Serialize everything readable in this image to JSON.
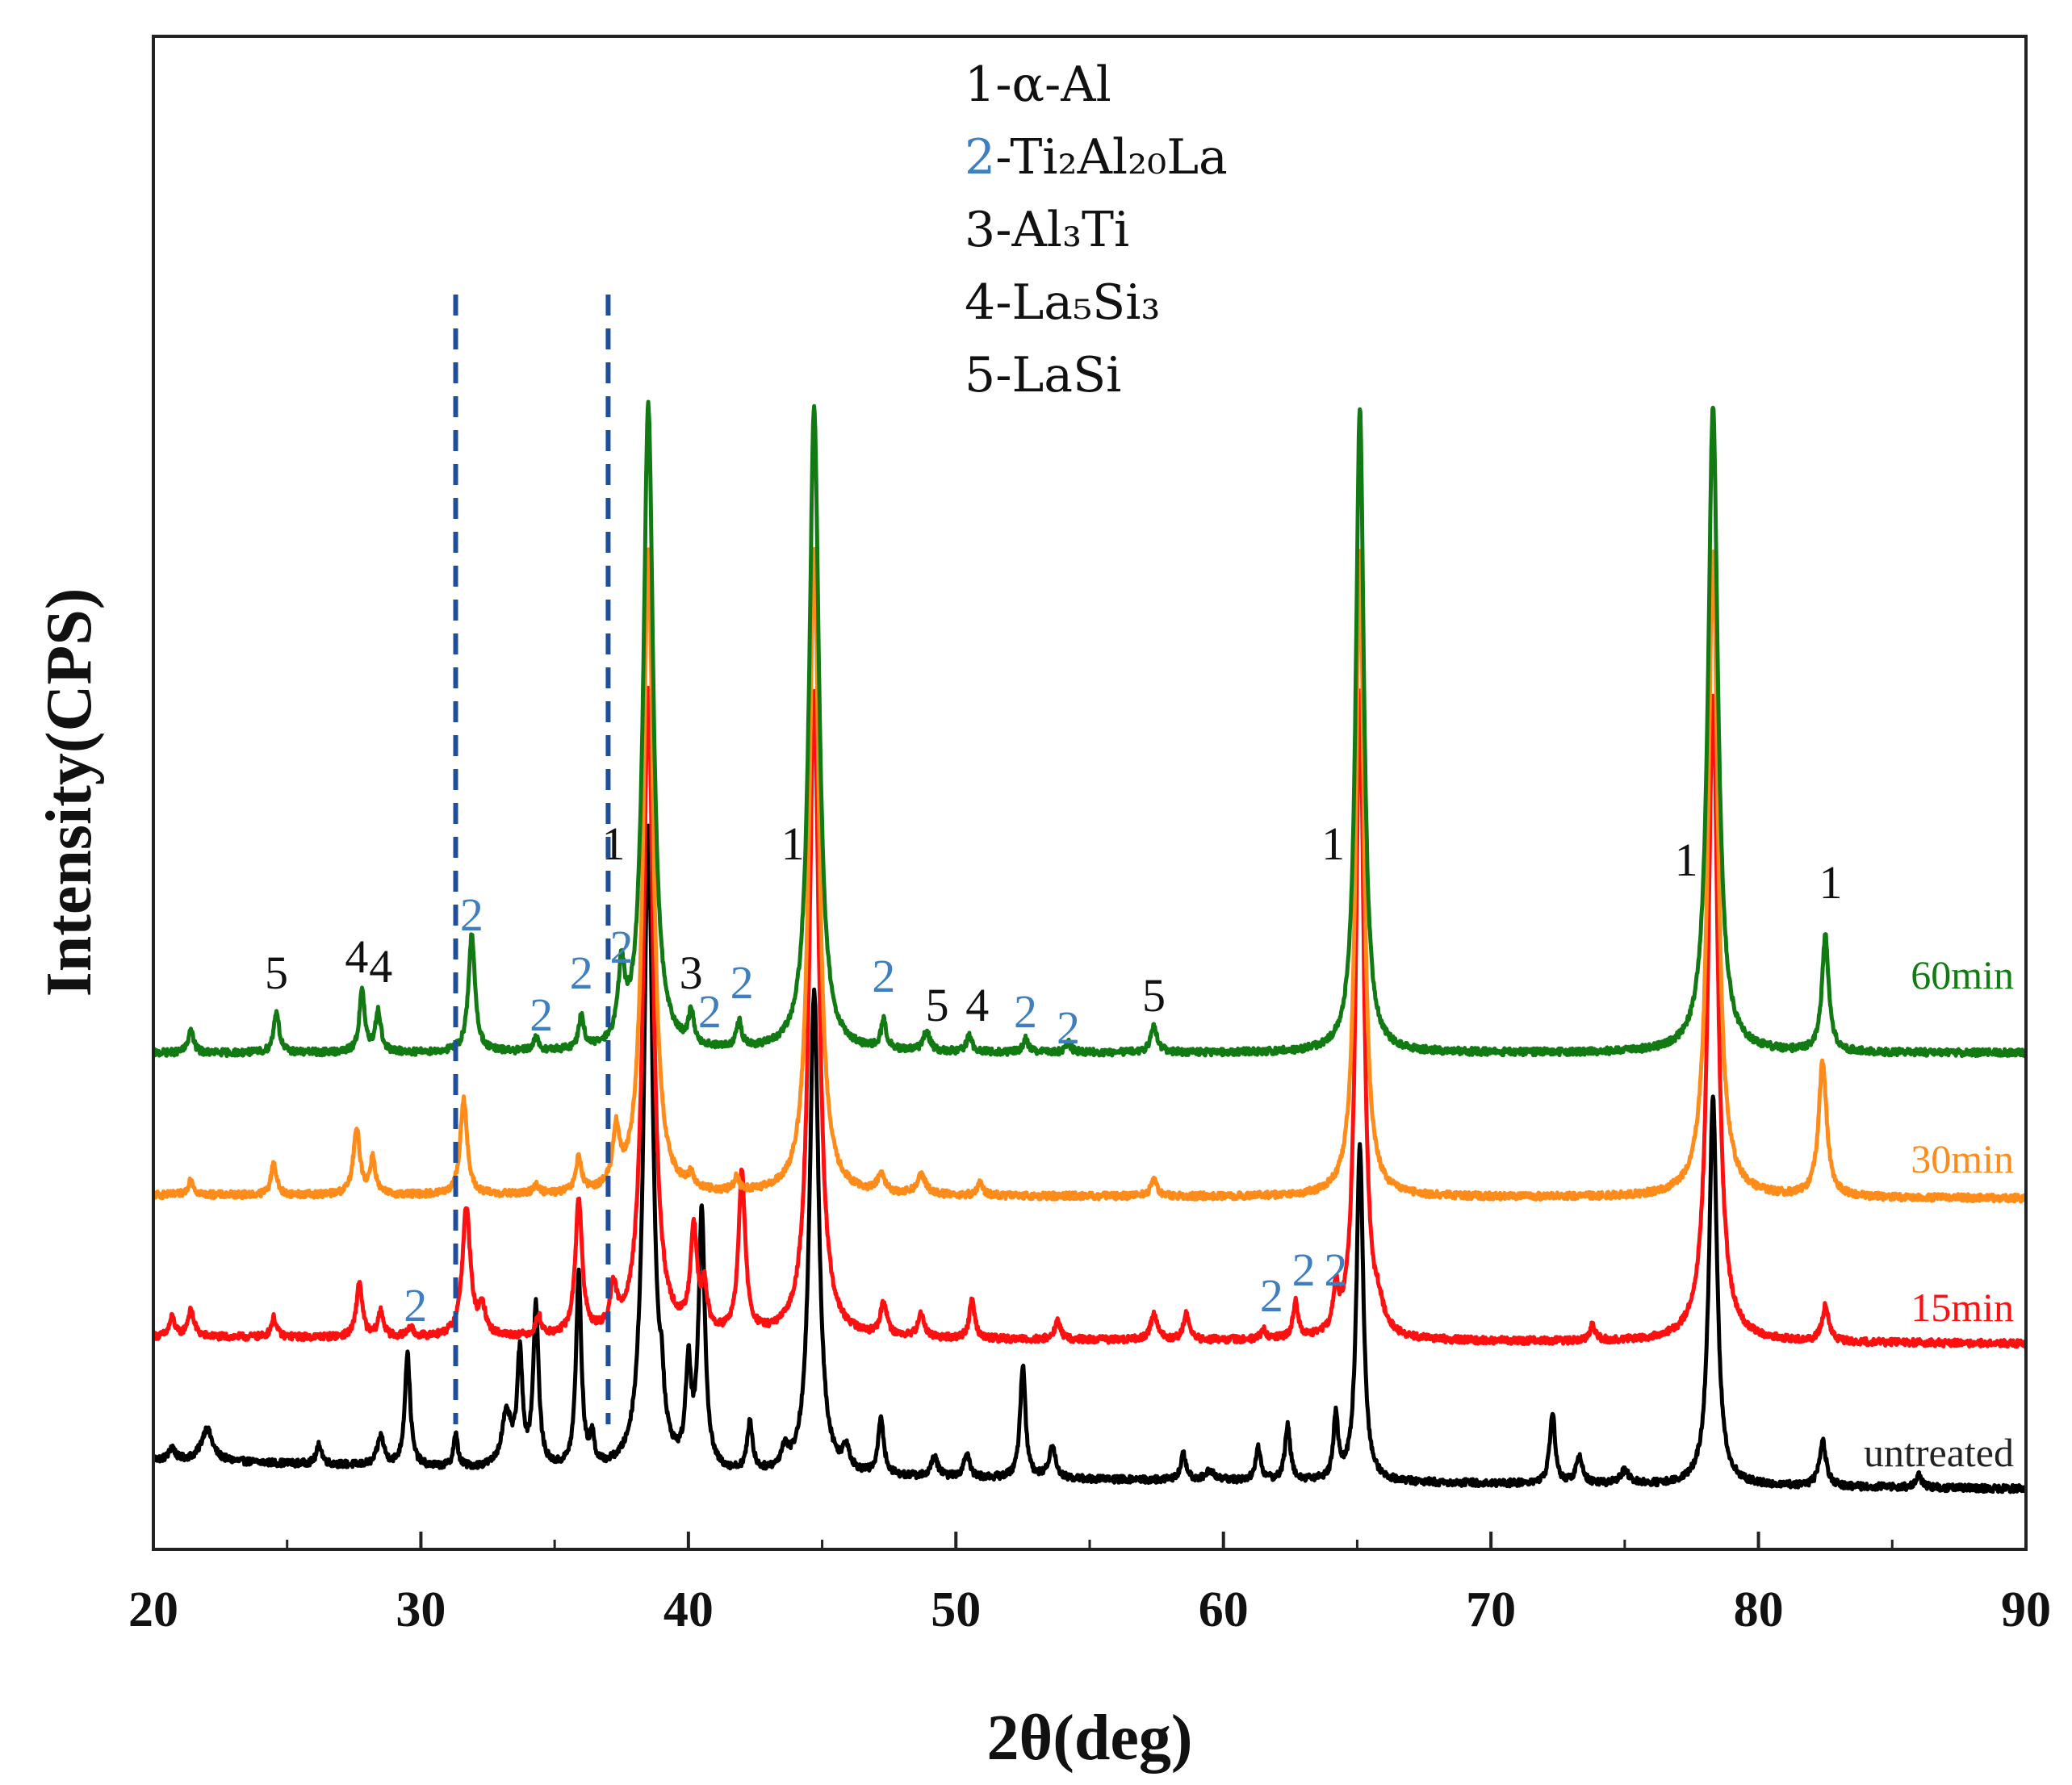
{
  "chart_data": {
    "type": "line",
    "title": "",
    "xlabel": "2θ(deg)",
    "ylabel": "Intensity(CPS)",
    "xlim": [
      20,
      90
    ],
    "x_ticks": [
      20,
      30,
      40,
      50,
      60,
      70,
      80,
      90
    ],
    "grid": false,
    "legend": {
      "position": "top-center",
      "entries": [
        {
          "number": "1",
          "name": "-α-Al",
          "color": "#111111"
        },
        {
          "number": "2",
          "name": "-Ti₂Al₂₀La",
          "color": "#3f7fbf"
        },
        {
          "number": "3",
          "name": "-Al₃Ti",
          "color": "#111111"
        },
        {
          "number": "4",
          "name": "-La₅Si₃",
          "color": "#111111"
        },
        {
          "number": "5",
          "name": "-LaSi",
          "color": "#111111"
        }
      ]
    },
    "series": [
      {
        "name": "untreated",
        "color": "#000000",
        "offset": 0,
        "baseline": [
          [
            20,
            9
          ],
          [
            40,
            4
          ],
          [
            90,
            0
          ]
        ],
        "peaks": [
          [
            20.7,
            4,
            0.12
          ],
          [
            22.0,
            10,
            0.25
          ],
          [
            26.2,
            6,
            0.12
          ],
          [
            28.5,
            9,
            0.15
          ],
          [
            29.5,
            35,
            0.12
          ],
          [
            31.3,
            10,
            0.1
          ],
          [
            33.2,
            16,
            0.22
          ],
          [
            33.7,
            34,
            0.12
          ],
          [
            34.3,
            50,
            0.12
          ],
          [
            35.9,
            60,
            0.12
          ],
          [
            36.4,
            9,
            0.1
          ],
          [
            38.5,
            200,
            0.2
          ],
          [
            39.0,
            14,
            0.1
          ],
          [
            40.0,
            30,
            0.12
          ],
          [
            40.5,
            80,
            0.14
          ],
          [
            42.3,
            15,
            0.12
          ],
          [
            43.6,
            6,
            0.15
          ],
          [
            44.7,
            150,
            0.2
          ],
          [
            45.9,
            7,
            0.15
          ],
          [
            47.2,
            18,
            0.12
          ],
          [
            49.2,
            6,
            0.15
          ],
          [
            50.4,
            8,
            0.12
          ],
          [
            52.5,
            35,
            0.12
          ],
          [
            53.6,
            10,
            0.15
          ],
          [
            58.5,
            8,
            0.12
          ],
          [
            59.5,
            3,
            0.2
          ],
          [
            61.3,
            10,
            0.12
          ],
          [
            62.4,
            17,
            0.12
          ],
          [
            64.2,
            20,
            0.1
          ],
          [
            65.1,
            105,
            0.15
          ],
          [
            72.3,
            22,
            0.12
          ],
          [
            73.3,
            8,
            0.15
          ],
          [
            75.0,
            4,
            0.2
          ],
          [
            78.3,
            120,
            0.18
          ],
          [
            82.4,
            14,
            0.15
          ],
          [
            86.0,
            4,
            0.12
          ]
        ]
      },
      {
        "name": "15min",
        "color": "#ff1010",
        "offset": 45,
        "baseline": [
          [
            20,
            2
          ],
          [
            90,
            0
          ]
        ],
        "peaks": [
          [
            20.7,
            6,
            0.12
          ],
          [
            21.4,
            8,
            0.15
          ],
          [
            24.5,
            6,
            0.12
          ],
          [
            27.7,
            17,
            0.13
          ],
          [
            28.5,
            8,
            0.12
          ],
          [
            29.6,
            3,
            0.12
          ],
          [
            31.7,
            40,
            0.18
          ],
          [
            32.3,
            8,
            0.15
          ],
          [
            34.4,
            6,
            0.12
          ],
          [
            35.9,
            42,
            0.15
          ],
          [
            37.2,
            12,
            0.15
          ],
          [
            38.5,
            200,
            0.22
          ],
          [
            40.2,
            32,
            0.15
          ],
          [
            40.6,
            13,
            0.12
          ],
          [
            42.0,
            50,
            0.15
          ],
          [
            44.7,
            200,
            0.22
          ],
          [
            47.3,
            10,
            0.15
          ],
          [
            48.7,
            7,
            0.15
          ],
          [
            50.6,
            12,
            0.12
          ],
          [
            53.8,
            6,
            0.12
          ],
          [
            57.4,
            8,
            0.15
          ],
          [
            58.6,
            8,
            0.12
          ],
          [
            61.5,
            3,
            0.12
          ],
          [
            62.7,
            11,
            0.12
          ],
          [
            64.2,
            13,
            0.1
          ],
          [
            65.1,
            200,
            0.18
          ],
          [
            65.8,
            6,
            0.2
          ],
          [
            73.8,
            5,
            0.12
          ],
          [
            78.3,
            200,
            0.22
          ],
          [
            82.5,
            11,
            0.15
          ]
        ]
      },
      {
        "name": "30min",
        "color": "#ff8c1a",
        "offset": 90,
        "baseline": [
          [
            20,
            1
          ],
          [
            90,
            0
          ]
        ],
        "peaks": [
          [
            21.4,
            5,
            0.12
          ],
          [
            24.5,
            10,
            0.12
          ],
          [
            27.6,
            20,
            0.15
          ],
          [
            28.2,
            11,
            0.12
          ],
          [
            31.6,
            30,
            0.15
          ],
          [
            34.3,
            3,
            0.12
          ],
          [
            35.9,
            11,
            0.12
          ],
          [
            37.3,
            17,
            0.15
          ],
          [
            38.5,
            200,
            0.22
          ],
          [
            40.1,
            4,
            0.12
          ],
          [
            41.8,
            4,
            0.12
          ],
          [
            44.7,
            200,
            0.22
          ],
          [
            47.2,
            6,
            0.15
          ],
          [
            48.7,
            6,
            0.2
          ],
          [
            50.9,
            4,
            0.12
          ],
          [
            57.4,
            5,
            0.15
          ],
          [
            65.1,
            200,
            0.18
          ],
          [
            78.3,
            200,
            0.22
          ],
          [
            82.4,
            42,
            0.18
          ]
        ]
      },
      {
        "name": "60min",
        "color": "#127a12",
        "offset": 135,
        "baseline": [
          [
            20,
            0
          ],
          [
            90,
            0
          ]
        ],
        "peaks": [
          [
            21.4,
            7,
            0.12
          ],
          [
            24.6,
            13,
            0.12
          ],
          [
            27.8,
            19,
            0.12
          ],
          [
            28.4,
            13,
            0.12
          ],
          [
            31.9,
            36,
            0.15
          ],
          [
            34.3,
            4,
            0.12
          ],
          [
            36.0,
            10,
            0.12
          ],
          [
            37.5,
            22,
            0.15
          ],
          [
            38.5,
            200,
            0.22
          ],
          [
            40.1,
            10,
            0.12
          ],
          [
            41.9,
            8,
            0.12
          ],
          [
            44.7,
            200,
            0.22
          ],
          [
            47.3,
            9,
            0.12
          ],
          [
            48.9,
            6,
            0.15
          ],
          [
            50.5,
            5,
            0.12
          ],
          [
            52.6,
            4,
            0.12
          ],
          [
            54.2,
            3,
            0.12
          ],
          [
            57.4,
            8,
            0.15
          ],
          [
            65.1,
            200,
            0.18
          ],
          [
            78.3,
            200,
            0.22
          ],
          [
            82.5,
            36,
            0.15
          ]
        ]
      }
    ],
    "series_labels": [
      "60min",
      "30min",
      "15min",
      "untreated"
    ],
    "reference_lines": [
      31.3,
      37.0
    ],
    "peak_labels": [
      {
        "text": "1",
        "x": 37.2,
        "y": 195,
        "color": "#111111"
      },
      {
        "text": "1",
        "x": 43.9,
        "y": 195,
        "color": "#111111"
      },
      {
        "text": "1",
        "x": 64.1,
        "y": 195,
        "color": "#111111"
      },
      {
        "text": "1",
        "x": 77.3,
        "y": 190,
        "color": "#111111"
      },
      {
        "text": "1",
        "x": 82.7,
        "y": 183,
        "color": "#111111"
      },
      {
        "text": "2",
        "x": 31.9,
        "y": 173,
        "color": "#3f7fbf"
      },
      {
        "text": "2",
        "x": 37.5,
        "y": 163,
        "color": "#3f7fbf"
      },
      {
        "text": "2",
        "x": 36.0,
        "y": 155,
        "color": "#3f7fbf"
      },
      {
        "text": "2",
        "x": 34.5,
        "y": 142,
        "color": "#3f7fbf"
      },
      {
        "text": "2",
        "x": 40.8,
        "y": 143,
        "color": "#3f7fbf"
      },
      {
        "text": "2",
        "x": 42.0,
        "y": 152,
        "color": "#3f7fbf"
      },
      {
        "text": "2",
        "x": 47.3,
        "y": 154,
        "color": "#3f7fbf"
      },
      {
        "text": "2",
        "x": 52.6,
        "y": 143,
        "color": "#3f7fbf"
      },
      {
        "text": "2",
        "x": 54.2,
        "y": 138,
        "color": "#3f7fbf"
      },
      {
        "text": "3",
        "x": 40.1,
        "y": 155,
        "color": "#111111"
      },
      {
        "text": "4",
        "x": 27.6,
        "y": 160,
        "color": "#111111"
      },
      {
        "text": "4",
        "x": 28.5,
        "y": 157,
        "color": "#111111"
      },
      {
        "text": "4",
        "x": 50.8,
        "y": 145,
        "color": "#111111"
      },
      {
        "text": "5",
        "x": 24.6,
        "y": 155,
        "color": "#111111"
      },
      {
        "text": "5",
        "x": 49.3,
        "y": 145,
        "color": "#111111"
      },
      {
        "text": "5",
        "x": 57.4,
        "y": 148,
        "color": "#111111"
      },
      {
        "text": "2",
        "x": 29.8,
        "y": 52,
        "color": "#3f7fbf"
      },
      {
        "text": "2",
        "x": 61.8,
        "y": 55,
        "color": "#3f7fbf"
      },
      {
        "text": "2",
        "x": 63.0,
        "y": 63,
        "color": "#3f7fbf"
      },
      {
        "text": "2",
        "x": 64.2,
        "y": 63,
        "color": "#3f7fbf"
      }
    ]
  }
}
